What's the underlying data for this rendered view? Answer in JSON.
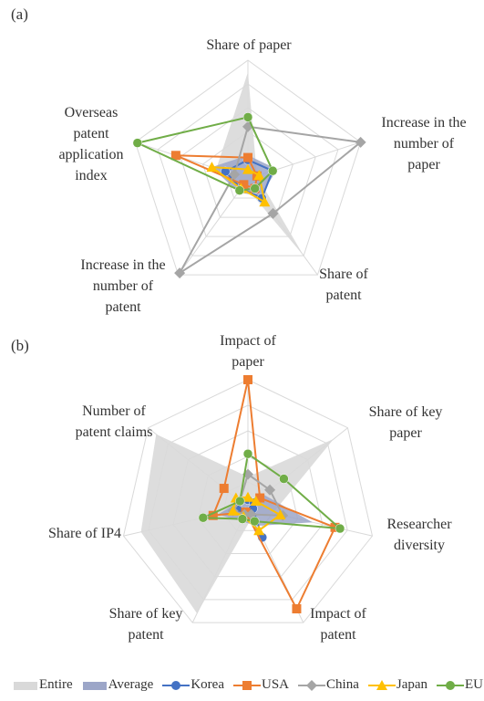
{
  "chart_data": [
    {
      "type": "radar",
      "panel_label": "(a)",
      "axes": [
        "Share of paper",
        "Increase in the\nnumber of\npaper",
        "Share of\npatent",
        "Increase in the\nnumber of\npatent",
        "Overseas\npatent\napplication\nindex"
      ],
      "rmax": 5,
      "grid_levels": 5,
      "series": [
        {
          "name": "Entire",
          "values": [
            4.5,
            0.4,
            4.0,
            0.3,
            1.4
          ]
        },
        {
          "name": "Average",
          "values": [
            1.0,
            1.3,
            0.9,
            0.7,
            1.6
          ]
        },
        {
          "name": "Korea",
          "values": [
            0.8,
            1.1,
            1.0,
            0.5,
            1.0
          ]
        },
        {
          "name": "USA",
          "values": [
            0.9,
            0.4,
            0.5,
            0.3,
            3.2
          ]
        },
        {
          "name": "China",
          "values": [
            2.2,
            5.0,
            1.8,
            4.9,
            0.6
          ]
        },
        {
          "name": "Japan",
          "values": [
            0.4,
            0.5,
            1.2,
            0.5,
            1.6
          ]
        },
        {
          "name": "EU",
          "values": [
            2.6,
            1.1,
            0.5,
            0.6,
            4.9
          ]
        }
      ]
    },
    {
      "type": "radar",
      "panel_label": "(b)",
      "axes": [
        "Impact of\npaper",
        "Share of key\npaper",
        "Researcher\ndiversity",
        "Impact of\npatent",
        "Share of key\npatent",
        "Share of IP4",
        "Number of\npatent claims"
      ],
      "rmax": 5,
      "grid_levels": 5,
      "series": [
        {
          "name": "Entire",
          "values": [
            1.2,
            4.3,
            1.0,
            0.4,
            4.6,
            4.3,
            4.6
          ]
        },
        {
          "name": "Average",
          "values": [
            0.3,
            0.8,
            2.6,
            0.8,
            0.6,
            1.2,
            0.4
          ]
        },
        {
          "name": "Korea",
          "values": [
            0.3,
            0.3,
            0.2,
            1.3,
            0.2,
            0.4,
            0.4
          ]
        },
        {
          "name": "USA",
          "values": [
            5.0,
            0.6,
            3.5,
            4.4,
            0.2,
            1.4,
            1.2
          ]
        },
        {
          "name": "China",
          "values": [
            1.3,
            1.1,
            1.4,
            0.3,
            0.3,
            0.6,
            0.4
          ]
        },
        {
          "name": "Japan",
          "values": [
            0.4,
            0.4,
            1.3,
            1.0,
            0.4,
            0.6,
            0.6
          ]
        },
        {
          "name": "EU",
          "values": [
            2.1,
            1.8,
            3.7,
            0.6,
            0.5,
            1.8,
            0.4
          ]
        }
      ]
    }
  ],
  "legend": [
    "Entire",
    "Average",
    "Korea",
    "USA",
    "China",
    "Japan",
    "EU"
  ],
  "colors": {
    "Entire": "#d9d9d9",
    "Average": "#9ca6c8",
    "Korea": "#4472c4",
    "USA": "#ed7d31",
    "China": "#a5a5a5",
    "Japan": "#ffc000",
    "EU": "#70ad47",
    "grid": "#d9d9d9"
  }
}
